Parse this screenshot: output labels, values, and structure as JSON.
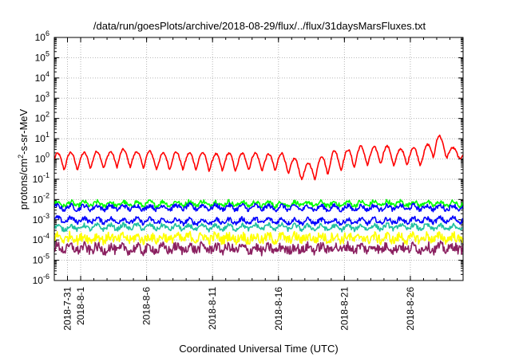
{
  "chart_data": {
    "type": "line",
    "title": "/data/run/goesPlots/archive/2018-08-29/flux/../flux/31daysMarsFluxes.txt",
    "xlabel": "Coordinated Universal Time (UTC)",
    "ylabel": {
      "pre": "protons/cm",
      "sup": "2",
      "post": "-s-sr-MeV"
    },
    "y_scale": "log",
    "ylim": [
      1e-06,
      1000000.0
    ],
    "y_ticks": [
      {
        "value": 1e-06,
        "base": "10",
        "exp": "-6"
      },
      {
        "value": 1e-05,
        "base": "10",
        "exp": "-5"
      },
      {
        "value": 0.0001,
        "base": "10",
        "exp": "-4"
      },
      {
        "value": 0.001,
        "base": "10",
        "exp": "-3"
      },
      {
        "value": 0.01,
        "base": "10",
        "exp": "-2"
      },
      {
        "value": 0.1,
        "base": "10",
        "exp": "-1"
      },
      {
        "value": 1,
        "base": "10",
        "exp": "0"
      },
      {
        "value": 10,
        "base": "10",
        "exp": "1"
      },
      {
        "value": 100,
        "base": "10",
        "exp": "2"
      },
      {
        "value": 1000,
        "base": "10",
        "exp": "3"
      },
      {
        "value": 10000,
        "base": "10",
        "exp": "4"
      },
      {
        "value": 100000,
        "base": "10",
        "exp": "5"
      },
      {
        "value": 1000000,
        "base": "10",
        "exp": "6"
      }
    ],
    "xlim": [
      "2018-07-30",
      "2018-08-30"
    ],
    "x_ticks": [
      "2018-7-31",
      "2018-8-1",
      "2018-8-6",
      "2018-8-11",
      "2018-8-16",
      "2018-8-21",
      "2018-8-26"
    ],
    "grid": true,
    "series": [
      {
        "color": "#ff0000",
        "x": [
          "2018-07-30",
          "2018-07-31",
          "2018-08-01",
          "2018-08-02",
          "2018-08-03",
          "2018-08-04",
          "2018-08-05",
          "2018-08-06",
          "2018-08-07",
          "2018-08-08",
          "2018-08-09",
          "2018-08-10",
          "2018-08-11",
          "2018-08-12",
          "2018-08-13",
          "2018-08-14",
          "2018-08-15",
          "2018-08-16",
          "2018-08-17",
          "2018-08-18",
          "2018-08-19",
          "2018-08-20",
          "2018-08-21",
          "2018-08-22",
          "2018-08-23",
          "2018-08-24",
          "2018-08-25",
          "2018-08-26",
          "2018-08-27",
          "2018-08-28",
          "2018-08-29",
          "2018-08-30"
        ],
        "values": [
          0.8,
          1.3,
          0.9,
          1.5,
          1.0,
          2.2,
          1.1,
          1.4,
          0.8,
          1.3,
          0.9,
          1.2,
          0.7,
          1.0,
          0.8,
          1.1,
          0.7,
          1.3,
          0.6,
          0.15,
          0.5,
          1.4,
          1.2,
          2.5,
          2.0,
          2.8,
          1.5,
          2.2,
          1.4,
          6.0,
          2.5,
          1.5
        ],
        "daily_min": [
          0.25,
          0.3,
          0.3,
          0.35,
          0.35,
          0.4,
          0.4,
          0.35,
          0.3,
          0.3,
          0.3,
          0.3,
          0.25,
          0.25,
          0.25,
          0.3,
          0.25,
          0.25,
          0.15,
          0.08,
          0.1,
          0.2,
          0.3,
          0.4,
          0.5,
          0.6,
          0.4,
          0.5,
          0.5,
          1.5,
          1.0,
          0.9
        ],
        "daily_max": [
          1.8,
          2.2,
          1.9,
          2.5,
          2.0,
          3.2,
          2.2,
          2.6,
          1.8,
          2.3,
          1.9,
          2.2,
          1.7,
          2.0,
          1.8,
          2.1,
          1.6,
          2.2,
          1.3,
          0.5,
          1.1,
          2.6,
          2.4,
          4.5,
          3.5,
          4.8,
          3.0,
          4.0,
          3.0,
          20.0,
          4.0,
          2.5
        ]
      },
      {
        "color": "#00ff00",
        "x": [
          "2018-07-30",
          "2018-08-05",
          "2018-08-10",
          "2018-08-15",
          "2018-08-20",
          "2018-08-25",
          "2018-08-30"
        ],
        "values": [
          0.006,
          0.006,
          0.0065,
          0.006,
          0.006,
          0.0065,
          0.006
        ]
      },
      {
        "color": "#0000ff",
        "x": [
          "2018-07-30",
          "2018-08-05",
          "2018-08-10",
          "2018-08-15",
          "2018-08-20",
          "2018-08-25",
          "2018-08-30"
        ],
        "values": [
          0.004,
          0.004,
          0.0042,
          0.004,
          0.0038,
          0.004,
          0.004
        ]
      },
      {
        "color": "#0000ff",
        "x": [
          "2018-07-30",
          "2018-08-05",
          "2018-08-10",
          "2018-08-15",
          "2018-08-20",
          "2018-08-25",
          "2018-08-30"
        ],
        "values": [
          0.001,
          0.0009,
          0.0008,
          0.0009,
          0.0008,
          0.0009,
          0.001
        ]
      },
      {
        "color": "#20c0a0",
        "x": [
          "2018-07-30",
          "2018-08-05",
          "2018-08-10",
          "2018-08-15",
          "2018-08-20",
          "2018-08-25",
          "2018-08-30"
        ],
        "values": [
          0.0004,
          0.00045,
          0.0004,
          0.00045,
          0.0004,
          0.00045,
          0.0004
        ]
      },
      {
        "color": "#ffff00",
        "x": [
          "2018-07-30",
          "2018-08-05",
          "2018-08-10",
          "2018-08-15",
          "2018-08-20",
          "2018-08-25",
          "2018-08-30"
        ],
        "values": [
          0.00013,
          0.00012,
          0.00013,
          0.00012,
          0.00013,
          0.00012,
          0.00013
        ]
      },
      {
        "color": "#8b2060",
        "x": [
          "2018-07-30",
          "2018-08-05",
          "2018-08-10",
          "2018-08-15",
          "2018-08-20",
          "2018-08-25",
          "2018-08-30"
        ],
        "values": [
          4e-05,
          3.5e-05,
          4e-05,
          3.5e-05,
          4e-05,
          4e-05,
          4e-05
        ]
      }
    ]
  }
}
